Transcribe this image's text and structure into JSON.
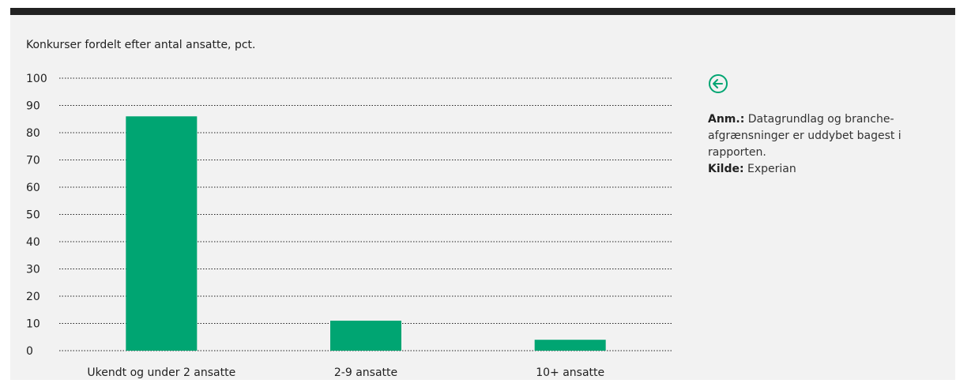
{
  "colors": {
    "bar": "#00a572",
    "accent": "#00a572",
    "grid": "#222222",
    "header": "#222222",
    "background": "#f2f2f2"
  },
  "chart_data": {
    "type": "bar",
    "title": "Konkurser fordelt efter antal ansatte, pct.",
    "categories": [
      "Ukendt og under 2 ansatte",
      "2-9 ansatte",
      "10+ ansatte"
    ],
    "values": [
      86,
      11,
      4
    ],
    "yticks": [
      0,
      10,
      20,
      30,
      40,
      50,
      60,
      70,
      80,
      90,
      100
    ],
    "ylim": [
      0,
      100
    ],
    "grid": true,
    "xlabel": "",
    "ylabel": ""
  },
  "notes": {
    "back_icon": "arrow-left-circle-icon",
    "anm_label": "Anm.:",
    "anm_text": "Datagrundlag og branche-afgrænsninger er uddybet bagest i rapporten.",
    "kilde_label": "Kilde:",
    "kilde_text": "Experian"
  }
}
